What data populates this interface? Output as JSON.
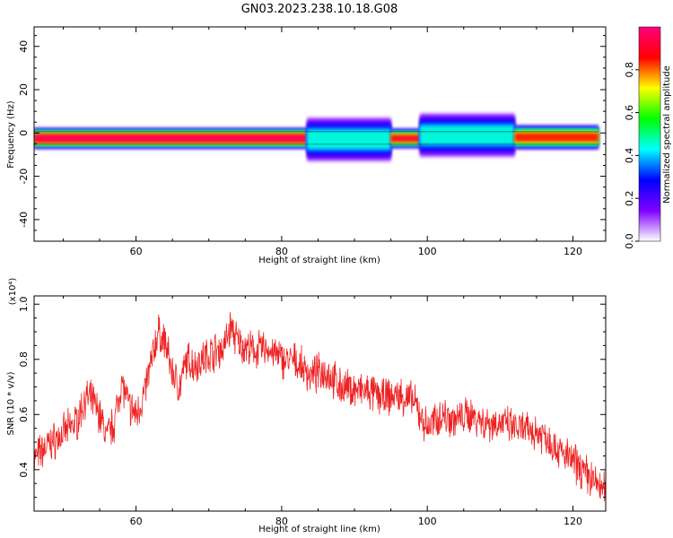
{
  "title": "GN03.2023.238.10.18.G08",
  "chart_data": [
    {
      "type": "heatmap",
      "xlabel": "Height of straight line (km)",
      "ylabel": "Frequency (Hz)",
      "xlim": [
        46,
        124.5
      ],
      "ylim": [
        -50,
        49
      ],
      "x_ticks": [
        60,
        80,
        100,
        120
      ],
      "y_ticks": [
        -40,
        -20,
        0,
        20,
        40
      ],
      "grid": false,
      "colorbar": {
        "label": "Normalized spectral amplitude",
        "ticks": [
          "0.0",
          "0.2",
          "0.4",
          "0.6",
          "0.8"
        ],
        "range": [
          0,
          1
        ],
        "colormap": [
          "#ffffff",
          "#8000ff",
          "#0000ff",
          "#00ffff",
          "#00ff00",
          "#ffff00",
          "#ff0000",
          "#ff0080"
        ]
      },
      "segments": [
        {
          "x": [
            46,
            83.5
          ],
          "center_hz": -2.5,
          "peak": 0.95,
          "half_width_hz": 1.8,
          "spread_hz": 3
        },
        {
          "x": [
            83.5,
            95
          ],
          "center_hz": -3,
          "peak": 0.45,
          "half_width_hz": 4,
          "spread_hz": 6
        },
        {
          "x": [
            95,
            99
          ],
          "center_hz": -2.5,
          "peak": 0.9,
          "half_width_hz": 1.5,
          "spread_hz": 3
        },
        {
          "x": [
            99,
            112
          ],
          "center_hz": -1,
          "peak": 0.45,
          "half_width_hz": 4,
          "spread_hz": 6
        },
        {
          "x": [
            112,
            123.5
          ],
          "center_hz": -2,
          "peak": 0.85,
          "half_width_hz": 2,
          "spread_hz": 3.5
        }
      ]
    },
    {
      "type": "line",
      "xlabel": "Height of straight line (km)",
      "ylabel": "SNR (10 * v/v)",
      "y_multiplier": "(x10⁴)",
      "xlim": [
        46,
        124.5
      ],
      "ylim": [
        0.25,
        1.03
      ],
      "x_ticks": [
        60,
        80,
        100,
        120
      ],
      "y_ticks": [
        "0.4",
        "0.6",
        "0.8",
        "1.0"
      ],
      "grid": false,
      "series": [
        {
          "color": "#ee2222",
          "x": [
            46,
            48,
            50,
            52,
            53,
            54,
            55,
            56,
            57,
            58,
            59,
            60,
            61,
            62,
            63,
            64,
            65,
            66,
            67,
            68,
            70,
            72,
            73,
            74,
            76,
            78,
            80,
            82,
            84,
            86,
            88,
            90,
            92,
            94,
            96,
            98,
            99,
            100,
            102,
            104,
            106,
            108,
            110,
            112,
            114,
            116,
            118,
            120,
            122,
            124.5
          ],
          "y": [
            0.44,
            0.49,
            0.53,
            0.58,
            0.66,
            0.65,
            0.6,
            0.52,
            0.57,
            0.72,
            0.63,
            0.6,
            0.66,
            0.78,
            0.9,
            0.86,
            0.75,
            0.7,
            0.8,
            0.78,
            0.82,
            0.84,
            0.92,
            0.86,
            0.83,
            0.84,
            0.8,
            0.79,
            0.74,
            0.76,
            0.7,
            0.69,
            0.68,
            0.66,
            0.67,
            0.65,
            0.6,
            0.55,
            0.6,
            0.58,
            0.6,
            0.57,
            0.57,
            0.55,
            0.54,
            0.53,
            0.47,
            0.43,
            0.38,
            0.32
          ]
        }
      ]
    }
  ]
}
